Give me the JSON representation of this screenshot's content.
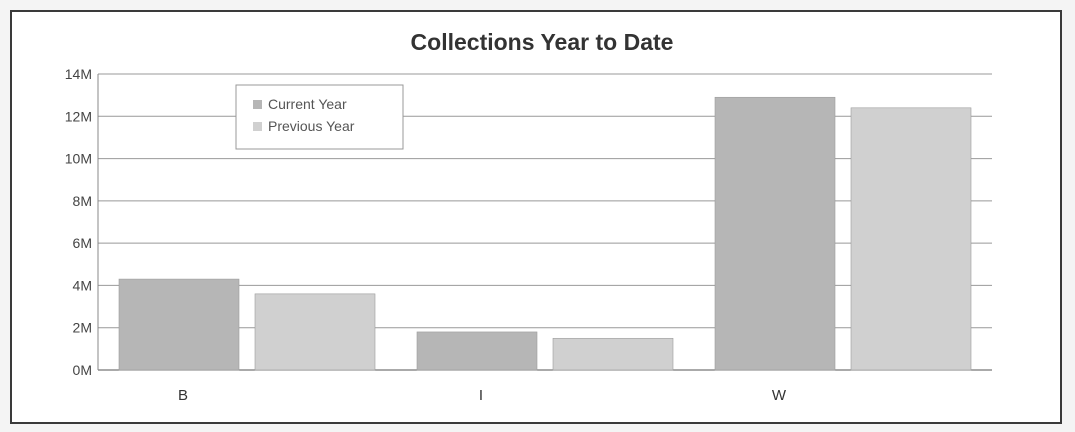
{
  "chart_data": {
    "type": "bar",
    "title": "Collections Year to Date",
    "categories": [
      "B",
      "I",
      "W"
    ],
    "series": [
      {
        "name": "Current Year",
        "color": "#b6b6b6",
        "values": [
          4300000,
          1800000,
          12900000
        ]
      },
      {
        "name": "Previous Year",
        "color": "#d0d0d0",
        "values": [
          3600000,
          1500000,
          12400000
        ]
      }
    ],
    "yticks": [
      "0M",
      "2M",
      "4M",
      "6M",
      "8M",
      "10M",
      "12M",
      "14M"
    ],
    "ylim": [
      0,
      14000000
    ],
    "xlabel": "",
    "ylabel": "",
    "grid": true,
    "legend_position": "top-left"
  }
}
